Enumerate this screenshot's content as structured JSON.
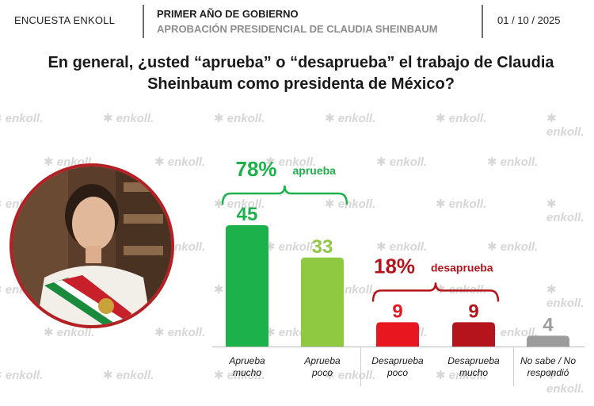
{
  "header": {
    "brand": "ENCUESTA ENKOLL",
    "title": "PRIMER AÑO DE GOBIERNO",
    "subtitle": "APROBACIÓN PRESIDENCIAL DE CLAUDIA SHEINBAUM",
    "date": "01 / 10 / 2025"
  },
  "watermark": "enkoll.",
  "colors": {
    "green_dark": "#1db14b",
    "green_light": "#8fc941",
    "red_bright": "#e8171f",
    "red_dark": "#b5141c",
    "gray": "#9c9c9c",
    "photo_border": "#b52025"
  },
  "chart_data": {
    "type": "bar",
    "title": "En general, ¿usted “aprueba” o “desaprueba” el trabajo de Claudia Sheinbaum como presidenta de México?",
    "categories": [
      "Aprueba mucho",
      "Aprueba poco",
      "Desaprueba poco",
      "Desaprueba mucho",
      "No sabe / No respondió"
    ],
    "category_lines": [
      [
        "Aprueba",
        "mucho"
      ],
      [
        "Aprueba",
        "poco"
      ],
      [
        "Desaprueba",
        "poco"
      ],
      [
        "Desaprueba",
        "mucho"
      ],
      [
        "No sabe / No",
        "respondió"
      ]
    ],
    "values": [
      45,
      33,
      9,
      9,
      4
    ],
    "value_labels": [
      "45",
      "33",
      "9",
      "9",
      "4"
    ],
    "bar_colors": [
      "#1db14b",
      "#8fc941",
      "#e8171f",
      "#b5141c",
      "#9c9c9c"
    ],
    "ylim": [
      0,
      50
    ],
    "groups": [
      {
        "percent": "78%",
        "label": "aprueba",
        "color": "#1db14b",
        "from": 0,
        "to": 1
      },
      {
        "percent": "18%",
        "label": "desaprueba",
        "color": "#b5141c",
        "from": 2,
        "to": 3
      }
    ],
    "xlabel": "",
    "ylabel": ""
  }
}
